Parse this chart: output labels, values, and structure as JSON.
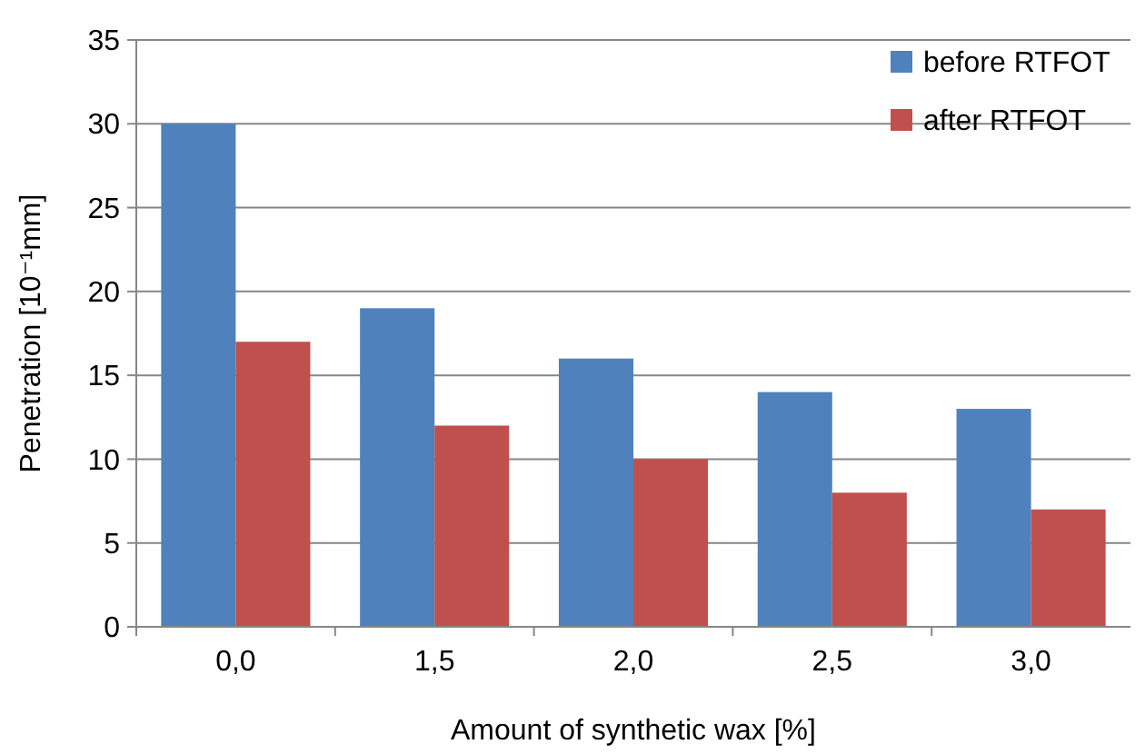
{
  "chart_data": {
    "type": "bar",
    "xlabel": "Amount of synthetic wax [%]",
    "ylabel": "Penetration [10⁻¹mm]",
    "categories": [
      "0,0",
      "1,5",
      "2,0",
      "2,5",
      "3,0"
    ],
    "series": [
      {
        "name": "before RTFOT",
        "color": "#4f81bd",
        "values": [
          30,
          19,
          16,
          14,
          13
        ]
      },
      {
        "name": "after RTFOT",
        "color": "#c0504d",
        "values": [
          17,
          12,
          10,
          8,
          7
        ]
      }
    ],
    "ylim": [
      0,
      35
    ],
    "yticks": [
      0,
      5,
      10,
      15,
      20,
      25,
      30,
      35
    ],
    "grid": "y",
    "legend": "top right"
  }
}
